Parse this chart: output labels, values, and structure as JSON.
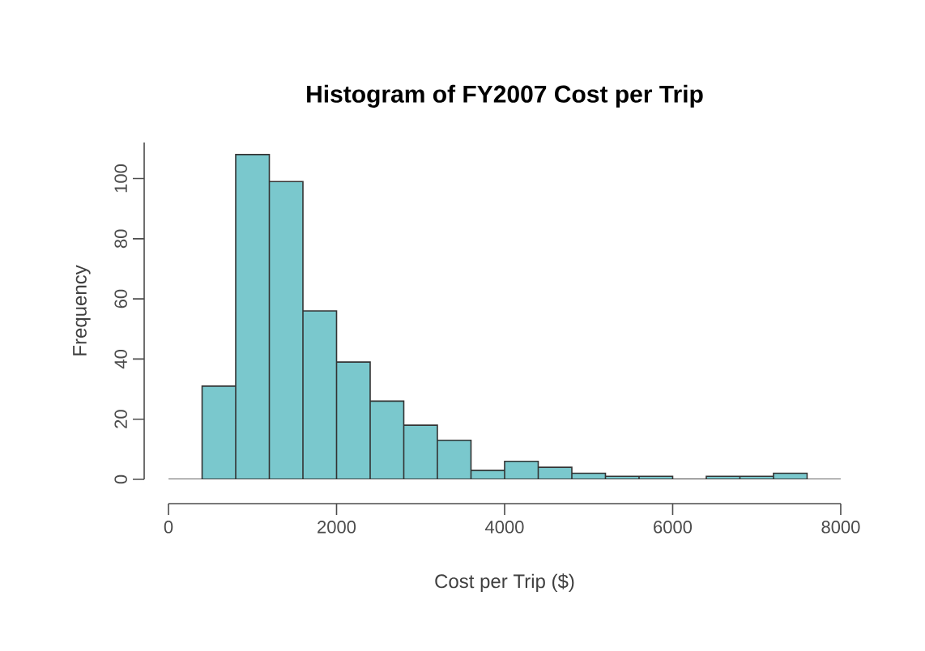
{
  "chart_data": {
    "type": "histogram",
    "title": "Histogram of FY2007 Cost per Trip",
    "xlabel": "Cost per Trip ($)",
    "ylabel": "Frequency",
    "bins": [
      400,
      800,
      1200,
      1600,
      2000,
      2400,
      2800,
      3200,
      3600,
      4000,
      4400,
      4800,
      5200,
      5600,
      6000,
      6400,
      6800,
      7200,
      7600
    ],
    "values": [
      31,
      108,
      99,
      56,
      39,
      26,
      18,
      13,
      3,
      6,
      4,
      2,
      1,
      1,
      0,
      1,
      1,
      2
    ],
    "color": "#7ac8cd",
    "xlim": [
      0,
      8000
    ],
    "xticks": [
      0,
      2000,
      4000,
      6000,
      8000
    ],
    "ylim": [
      0,
      112
    ],
    "yticks": [
      0,
      20,
      40,
      60,
      80,
      100
    ],
    "ref_lines": [
      {
        "axis": "y",
        "value": 0
      }
    ],
    "grid": false
  }
}
